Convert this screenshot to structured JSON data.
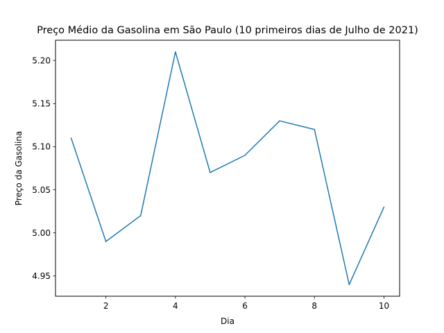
{
  "chart_data": {
    "type": "line",
    "title": "Preço Médio da Gasolina em São Paulo (10 primeiros dias de Julho de 2021)",
    "xlabel": "Dia",
    "ylabel": "Preço da Gasolina",
    "x": [
      1,
      2,
      3,
      4,
      5,
      6,
      7,
      8,
      9,
      10
    ],
    "series": [
      {
        "values": [
          5.11,
          4.99,
          5.02,
          5.21,
          5.07,
          5.09,
          5.13,
          5.12,
          4.94,
          5.03
        ],
        "color": "#1f77b4"
      }
    ],
    "xlim": [
      0.55,
      10.45
    ],
    "ylim": [
      4.9265,
      5.2235
    ],
    "xticks": [
      2,
      4,
      6,
      8,
      10
    ],
    "xtick_labels": [
      "2",
      "4",
      "6",
      "8",
      "10"
    ],
    "yticks": [
      4.95,
      5.0,
      5.05,
      5.1,
      5.15,
      5.2
    ],
    "ytick_labels": [
      "4.95",
      "5.00",
      "5.05",
      "5.10",
      "5.15",
      "5.20"
    ],
    "grid": false,
    "legend": "none"
  }
}
